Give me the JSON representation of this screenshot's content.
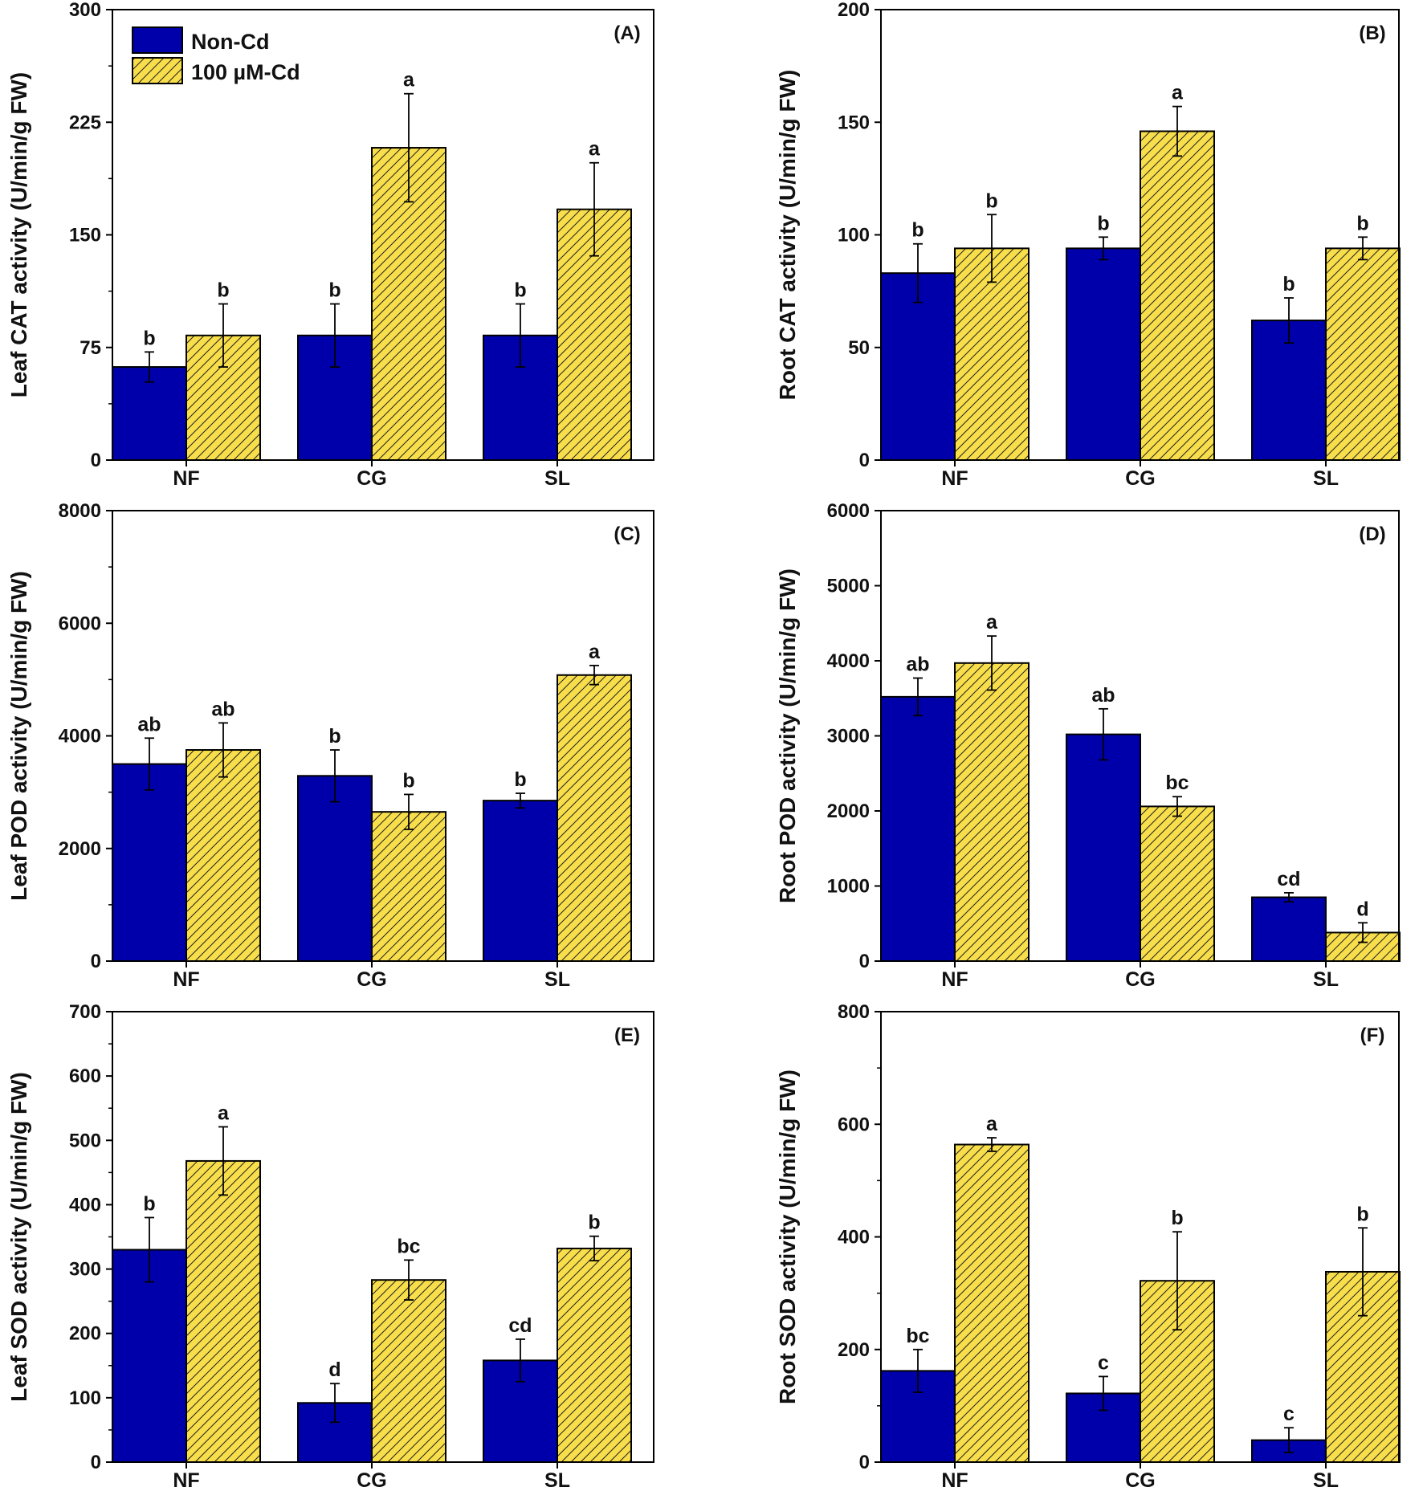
{
  "legend": {
    "series": [
      {
        "name": "Non-Cd",
        "color": "#0000AA",
        "pattern": "solid"
      },
      {
        "name": "100 µM-Cd",
        "color": "#F8DE4A",
        "pattern": "hatch"
      }
    ]
  },
  "chart_data": [
    {
      "type": "bar",
      "panel": "(A)",
      "ylabel": "Leaf CAT activity (U/min/g FW)",
      "categories": [
        "NF",
        "CG",
        "SL"
      ],
      "ylim": [
        0,
        300
      ],
      "yticks": [
        "0",
        "75",
        "150",
        "225",
        "300"
      ],
      "minor_ticks": true,
      "series": [
        {
          "name": "Non-Cd",
          "values": [
            62,
            83,
            83
          ],
          "errors": [
            10,
            21,
            21
          ],
          "letters": [
            "b",
            "b",
            "b"
          ]
        },
        {
          "name": "100 µM-Cd",
          "values": [
            83,
            208,
            167
          ],
          "errors": [
            21,
            36,
            31
          ],
          "letters": [
            "b",
            "a",
            "a"
          ]
        }
      ]
    },
    {
      "type": "bar",
      "panel": "(B)",
      "ylabel": "Root CAT activity (U/min/g FW)",
      "categories": [
        "NF",
        "CG",
        "SL"
      ],
      "ylim": [
        0,
        200
      ],
      "yticks": [
        "0",
        "50",
        "100",
        "150",
        "200"
      ],
      "minor_ticks": false,
      "series": [
        {
          "name": "Non-Cd",
          "values": [
            83,
            94,
            62
          ],
          "errors": [
            13,
            5,
            10
          ],
          "letters": [
            "b",
            "b",
            "b"
          ]
        },
        {
          "name": "100 µM-Cd",
          "values": [
            94,
            146,
            94
          ],
          "errors": [
            15,
            11,
            5
          ],
          "letters": [
            "b",
            "a",
            "b"
          ]
        }
      ]
    },
    {
      "type": "bar",
      "panel": "(C)",
      "ylabel": "Leaf POD activity (U/min/g FW)",
      "categories": [
        "NF",
        "CG",
        "SL"
      ],
      "ylim": [
        0,
        8000
      ],
      "yticks": [
        "0",
        "2000",
        "4000",
        "6000",
        "8000"
      ],
      "minor_ticks": true,
      "series": [
        {
          "name": "Non-Cd",
          "values": [
            3500,
            3290,
            2850
          ],
          "errors": [
            460,
            460,
            130
          ],
          "letters": [
            "ab",
            "b",
            "b"
          ]
        },
        {
          "name": "100 µM-Cd",
          "values": [
            3750,
            2650,
            5080
          ],
          "errors": [
            480,
            310,
            170
          ],
          "letters": [
            "ab",
            "b",
            "a"
          ]
        }
      ]
    },
    {
      "type": "bar",
      "panel": "(D)",
      "ylabel": "Root POD activity (U/min/g FW)",
      "categories": [
        "NF",
        "CG",
        "SL"
      ],
      "ylim": [
        0,
        6000
      ],
      "yticks": [
        "0",
        "1000",
        "2000",
        "3000",
        "4000",
        "5000",
        "6000"
      ],
      "minor_ticks": false,
      "series": [
        {
          "name": "Non-Cd",
          "values": [
            3520,
            3020,
            850
          ],
          "errors": [
            250,
            340,
            60
          ],
          "letters": [
            "ab",
            "ab",
            "cd"
          ]
        },
        {
          "name": "100 µM-Cd",
          "values": [
            3970,
            2060,
            380
          ],
          "errors": [
            360,
            130,
            130
          ],
          "letters": [
            "a",
            "bc",
            "d"
          ]
        }
      ]
    },
    {
      "type": "bar",
      "panel": "(E)",
      "ylabel": "Leaf SOD activity (U/min/g FW)",
      "categories": [
        "NF",
        "CG",
        "SL"
      ],
      "ylim": [
        0,
        700
      ],
      "yticks": [
        "0",
        "100",
        "200",
        "300",
        "400",
        "500",
        "600",
        "700"
      ],
      "minor_ticks": true,
      "series": [
        {
          "name": "Non-Cd",
          "values": [
            330,
            92,
            158
          ],
          "errors": [
            50,
            30,
            33
          ],
          "letters": [
            "b",
            "d",
            "cd"
          ]
        },
        {
          "name": "100 µM-Cd",
          "values": [
            468,
            283,
            332
          ],
          "errors": [
            53,
            31,
            19
          ],
          "letters": [
            "a",
            "bc",
            "b"
          ]
        }
      ]
    },
    {
      "type": "bar",
      "panel": "(F)",
      "ylabel": "Root SOD activity (U/min/g FW)",
      "categories": [
        "NF",
        "CG",
        "SL"
      ],
      "ylim": [
        0,
        800
      ],
      "yticks": [
        "0",
        "200",
        "400",
        "600",
        "800"
      ],
      "minor_ticks": true,
      "series": [
        {
          "name": "Non-Cd",
          "values": [
            162,
            122,
            39
          ],
          "errors": [
            38,
            30,
            22
          ],
          "letters": [
            "bc",
            "c",
            "c"
          ]
        },
        {
          "name": "100 µM-Cd",
          "values": [
            564,
            322,
            338
          ],
          "errors": [
            12,
            87,
            78
          ],
          "letters": [
            "a",
            "b",
            "b"
          ]
        }
      ]
    }
  ]
}
